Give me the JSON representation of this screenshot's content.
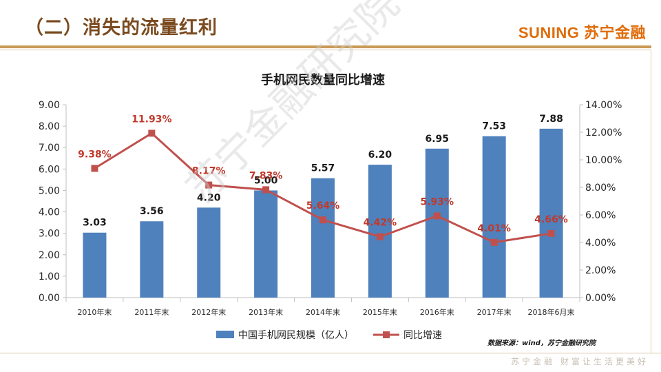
{
  "slide": {
    "title": "（二）消失的流量红利",
    "brand": "SUNING 苏宁金融",
    "footer_slogan": "苏宁金融 财富让生活更美好",
    "source": "数据来源：wind，苏宁金融研究院",
    "watermark": "苏宁金融研究院"
  },
  "chart_data": {
    "type": "bar",
    "title": "手机网民数量同比增速",
    "categories": [
      "2010年末",
      "2011年末",
      "2012年末",
      "2013年末",
      "2014年末",
      "2015年末",
      "2016年末",
      "2017年末",
      "2018年6月末"
    ],
    "series": [
      {
        "name": "中国手机网民规模（亿人）",
        "type": "bar",
        "axis": "left",
        "color": "#4f81bd",
        "values": [
          3.03,
          3.56,
          4.2,
          5.0,
          5.57,
          6.2,
          6.95,
          7.53,
          7.88
        ],
        "labels": [
          "3.03",
          "3.56",
          "4.20",
          "5.00",
          "5.57",
          "6.20",
          "6.95",
          "7.53",
          "7.88"
        ]
      },
      {
        "name": "同比增速",
        "type": "line",
        "axis": "right",
        "color": "#c0504d",
        "values": [
          9.38,
          11.93,
          8.17,
          7.83,
          5.64,
          4.42,
          5.93,
          4.01,
          4.66
        ],
        "labels": [
          "9.38%",
          "11.93%",
          "8.17%",
          "7.83%",
          "5.64%",
          "4.42%",
          "5.93%",
          "4.01%",
          "4.66%"
        ]
      }
    ],
    "y_left": {
      "min": 0,
      "max": 9,
      "step": 1,
      "ticks": [
        "0.00",
        "1.00",
        "2.00",
        "3.00",
        "4.00",
        "5.00",
        "6.00",
        "7.00",
        "8.00",
        "9.00"
      ]
    },
    "y_right": {
      "min": 0,
      "max": 14,
      "step": 2,
      "ticks": [
        "0.00%",
        "2.00%",
        "4.00%",
        "6.00%",
        "8.00%",
        "10.00%",
        "12.00%",
        "14.00%"
      ]
    },
    "legend_position": "bottom",
    "grid": false
  }
}
